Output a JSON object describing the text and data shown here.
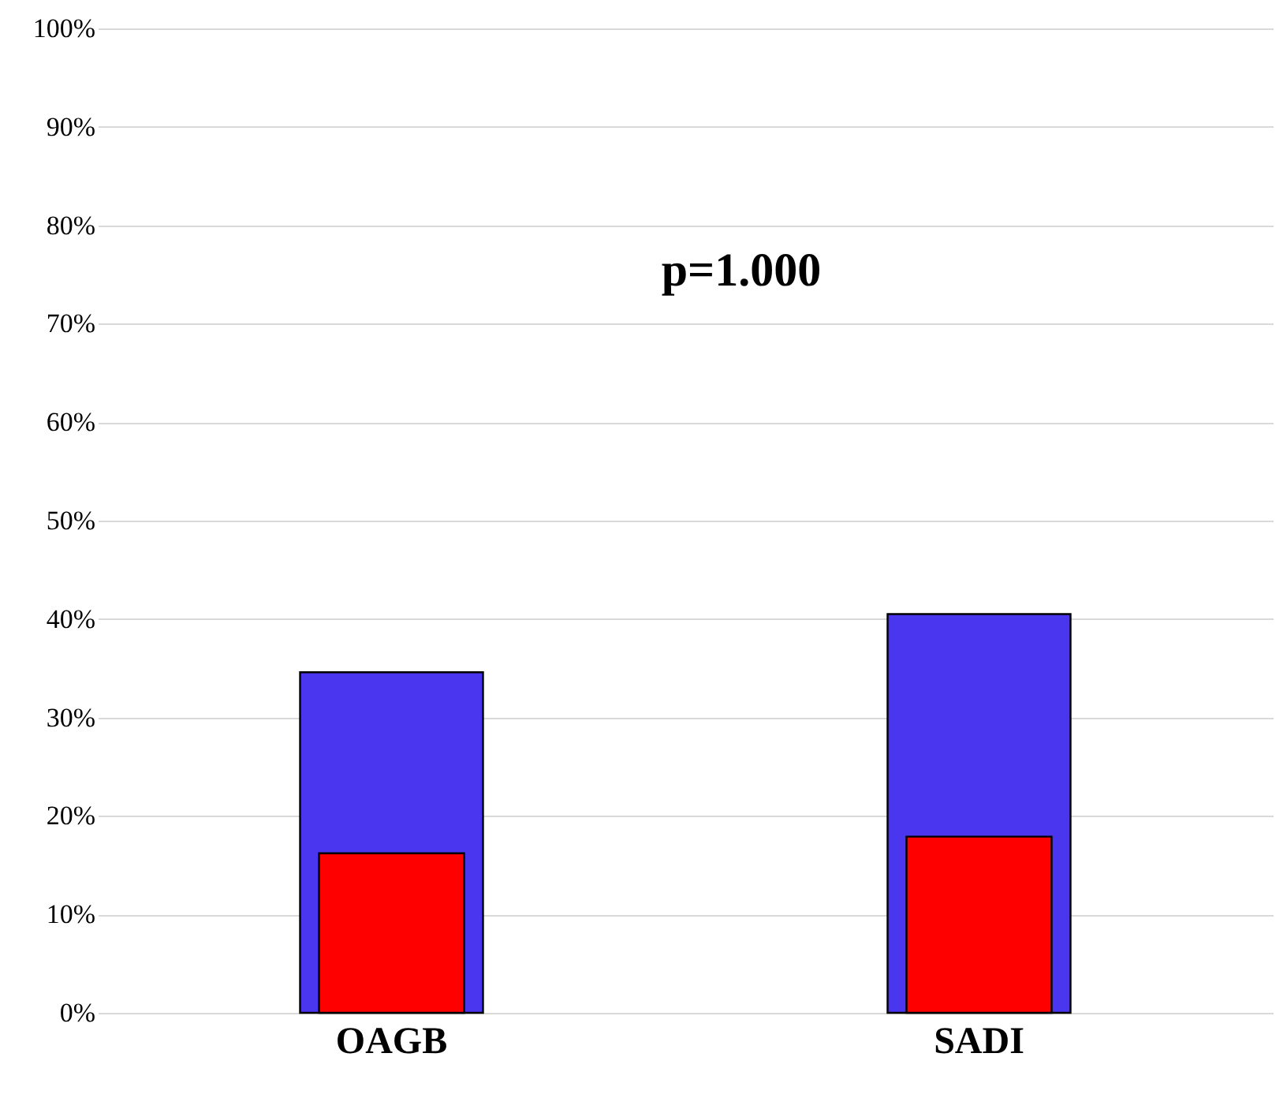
{
  "chart_data": {
    "type": "bar",
    "categories": [
      "OAGB",
      "SADI"
    ],
    "series": [
      {
        "color": "#4936ee",
        "values": [
          34.6,
          40.5
        ]
      },
      {
        "color": "#ff0000",
        "values": [
          16.2,
          17.9
        ]
      }
    ],
    "ylim": [
      0,
      100
    ],
    "yticks": [
      {
        "value": 0,
        "label": "0%"
      },
      {
        "value": 10,
        "label": "10%"
      },
      {
        "value": 20,
        "label": "20%"
      },
      {
        "value": 30,
        "label": "30%"
      },
      {
        "value": 40,
        "label": "40%"
      },
      {
        "value": 50,
        "label": "50%"
      },
      {
        "value": 60,
        "label": "60%"
      },
      {
        "value": 70,
        "label": "70%"
      },
      {
        "value": 80,
        "label": "80%"
      },
      {
        "value": 90,
        "label": "90%"
      },
      {
        "value": 100,
        "label": "100%"
      }
    ],
    "grid": "y",
    "annotations": [
      "p=1.000"
    ]
  }
}
